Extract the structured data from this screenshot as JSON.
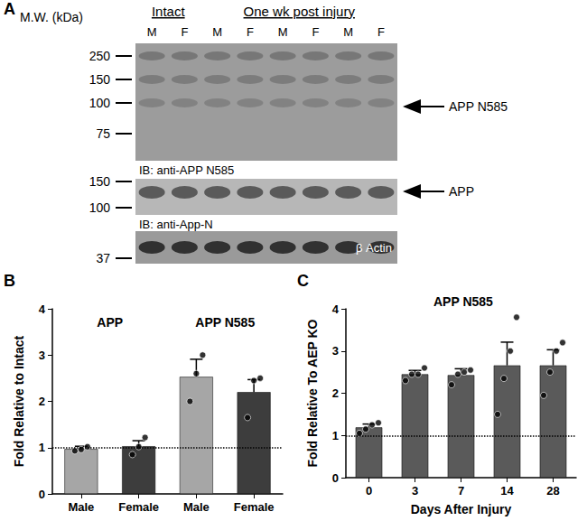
{
  "panel_a": {
    "panel": "A",
    "mw_label": "M.W. (kDa)",
    "groups": [
      {
        "label": "Intact",
        "lanes": [
          "M",
          "F"
        ]
      },
      {
        "label": "One wk post injury",
        "lanes": [
          "M",
          "F",
          "M",
          "F",
          "M",
          "F"
        ]
      }
    ],
    "blots": [
      {
        "markers": [
          250,
          150,
          100,
          75
        ],
        "band": "APP N585",
        "arrow": true,
        "antibody": "IB: anti-APP N585"
      },
      {
        "markers": [
          150,
          100
        ],
        "band": "APP",
        "arrow": true,
        "antibody": "IB: anti-App-N"
      },
      {
        "markers": [
          37
        ],
        "band": "β Actin",
        "arrow": false
      }
    ]
  },
  "chart_data": [
    {
      "type": "bar",
      "panel": "B",
      "ylabel": "Fold Relative to Intact",
      "categories": [
        "Male",
        "Female",
        "Male",
        "Female"
      ],
      "group_labels": [
        "APP",
        "APP N585"
      ],
      "values": [
        0.97,
        1.03,
        2.53,
        2.2
      ],
      "errors": [
        0.06,
        0.12,
        0.38,
        0.27
      ],
      "points": [
        [
          0.93,
          0.96,
          1.02
        ],
        [
          0.85,
          1.02,
          1.22
        ],
        [
          2.0,
          2.6,
          3.0
        ],
        [
          1.65,
          2.45,
          2.5
        ]
      ],
      "colors": [
        "#a6a6a6",
        "#3d3d3d",
        "#a6a6a6",
        "#3d3d3d"
      ],
      "reference_line": 1,
      "ylim": [
        0,
        4
      ],
      "yticks": [
        0,
        1,
        2,
        3,
        4
      ],
      "marker": "circle"
    },
    {
      "type": "bar",
      "panel": "C",
      "title": "APP N585",
      "xlabel": "Days After Injury",
      "ylabel": "Fold Relative To AEP KO",
      "categories": [
        "0",
        "3",
        "7",
        "14",
        "28"
      ],
      "values": [
        1.19,
        2.45,
        2.43,
        2.66,
        2.66
      ],
      "errors": [
        0.08,
        0.09,
        0.15,
        0.55,
        0.37
      ],
      "points": [
        [
          1.05,
          1.15,
          1.25,
          1.3
        ],
        [
          2.3,
          2.45,
          2.45,
          2.6
        ],
        [
          2.2,
          2.45,
          2.5,
          2.55
        ],
        [
          1.5,
          2.35,
          3.0,
          3.8
        ],
        [
          1.95,
          2.5,
          3.0,
          3.2
        ]
      ],
      "color": "#5a5a5a",
      "reference_line": 1,
      "ylim": [
        0,
        4
      ],
      "yticks": [
        0,
        1,
        2,
        3,
        4
      ],
      "marker": "circle"
    }
  ]
}
